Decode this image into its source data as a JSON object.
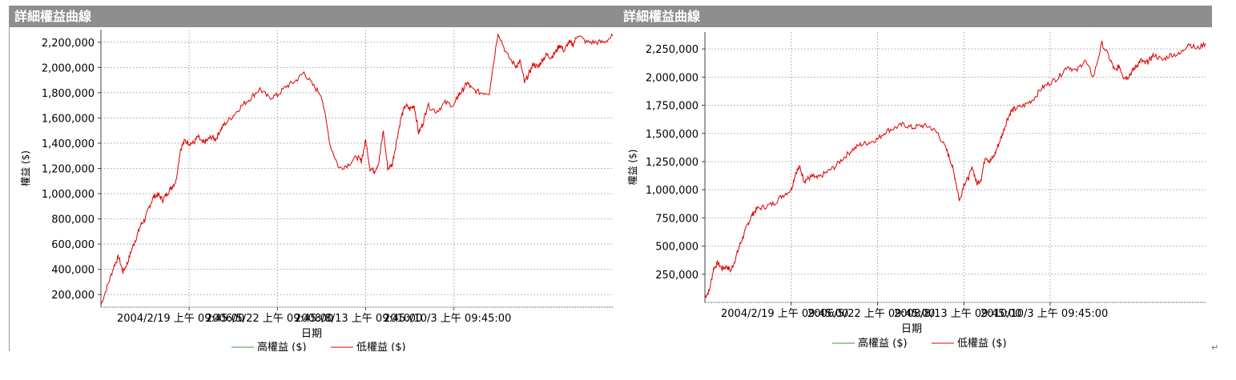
{
  "page_mark": "↵",
  "chart_data": [
    {
      "type": "line",
      "title": "詳細權益曲線",
      "ylabel": "權益 ($)",
      "xlabel": "日期",
      "ylim": [
        100000,
        2300000
      ],
      "y_ticks": [
        "200,000",
        "400,000",
        "600,000",
        "800,000",
        "1,000,000",
        "1,200,000",
        "1,400,000",
        "1,600,000",
        "1,800,000",
        "2,000,000",
        "2,200,000"
      ],
      "y_tick_values": [
        200000,
        400000,
        600000,
        800000,
        1000000,
        1200000,
        1400000,
        1600000,
        1800000,
        2000000,
        2200000
      ],
      "x_labels": [
        "2004/2/19 上午 09:45:00",
        "2006/5/22 上午 09:45:00",
        "2008/8/13 上午 09:45:00",
        "2010/10/3 上午 09:45:00"
      ],
      "x_tick_positions": [
        1,
        2,
        3,
        4
      ],
      "x_range": [
        0,
        5.8
      ],
      "grid": true,
      "legend": [
        "高權益 ($)",
        "低權益 ($)"
      ],
      "legend_colors": [
        "#3a9a3a",
        "#e00000"
      ],
      "series": [
        {
          "name": "低權益 ($)",
          "color": "#e00000",
          "x": [
            0,
            0.08,
            0.15,
            0.2,
            0.25,
            0.3,
            0.35,
            0.4,
            0.45,
            0.5,
            0.55,
            0.6,
            0.65,
            0.7,
            0.75,
            0.8,
            0.85,
            0.9,
            0.95,
            1.0,
            1.05,
            1.1,
            1.15,
            1.2,
            1.25,
            1.3,
            1.35,
            1.4,
            1.5,
            1.6,
            1.7,
            1.8,
            1.9,
            2.0,
            2.1,
            2.2,
            2.3,
            2.4,
            2.5,
            2.6,
            2.7,
            2.8,
            2.9,
            2.95,
            3.0,
            3.05,
            3.1,
            3.15,
            3.2,
            3.25,
            3.3,
            3.35,
            3.4,
            3.45,
            3.5,
            3.55,
            3.6,
            3.65,
            3.7,
            3.8,
            3.9,
            4.0,
            4.05,
            4.1,
            4.15,
            4.2,
            4.3,
            4.4,
            4.5,
            4.6,
            4.7,
            4.75,
            4.8,
            4.85,
            4.9,
            4.95,
            5.0,
            5.05,
            5.1,
            5.15,
            5.2,
            5.25,
            5.3,
            5.35,
            5.4,
            5.5,
            5.6,
            5.7,
            5.8
          ],
          "values": [
            120000,
            280000,
            430000,
            500000,
            380000,
            450000,
            560000,
            650000,
            750000,
            800000,
            900000,
            980000,
            990000,
            950000,
            1000000,
            1050000,
            1100000,
            1350000,
            1420000,
            1400000,
            1400000,
            1450000,
            1400000,
            1420000,
            1450000,
            1430000,
            1500000,
            1550000,
            1620000,
            1700000,
            1760000,
            1830000,
            1760000,
            1780000,
            1850000,
            1890000,
            1960000,
            1860000,
            1780000,
            1380000,
            1200000,
            1230000,
            1290000,
            1260000,
            1420000,
            1200000,
            1180000,
            1250000,
            1500000,
            1200000,
            1230000,
            1420000,
            1600000,
            1700000,
            1670000,
            1700000,
            1480000,
            1560000,
            1700000,
            1650000,
            1720000,
            1700000,
            1780000,
            1820000,
            1880000,
            1830000,
            1800000,
            1800000,
            2280000,
            2100000,
            2010000,
            2050000,
            1880000,
            1950000,
            2030000,
            2000000,
            2060000,
            2100000,
            2080000,
            2120000,
            2180000,
            2130000,
            2200000,
            2180000,
            2260000,
            2200000,
            2200000,
            2200000,
            2250000
          ]
        }
      ]
    },
    {
      "type": "line",
      "title": "詳細權益曲線",
      "ylabel": "權益 ($)",
      "xlabel": "日期",
      "ylim": [
        0,
        2400000
      ],
      "y_ticks": [
        "250,000",
        "500,000",
        "750,000",
        "1,000,000",
        "1,250,000",
        "1,500,000",
        "1,750,000",
        "2,000,000",
        "2,250,000"
      ],
      "y_tick_values": [
        250000,
        500000,
        750000,
        1000000,
        1250000,
        1500000,
        1750000,
        2000000,
        2250000
      ],
      "x_labels": [
        "2004/2/19 上午 09:45:00",
        "2006/5/22 上午 09:45:00",
        "2008/8/13 上午 09:45:00",
        "2010/10/3 上午 09:45:00"
      ],
      "x_tick_positions": [
        1,
        2,
        3,
        4
      ],
      "x_range": [
        0,
        5.8
      ],
      "grid": true,
      "legend": [
        "高權益 ($)",
        "低權益 ($)"
      ],
      "legend_colors": [
        "#3a9a3a",
        "#e00000"
      ],
      "series": [
        {
          "name": "低權益 ($)",
          "color": "#e00000",
          "x": [
            0,
            0.05,
            0.1,
            0.15,
            0.2,
            0.25,
            0.3,
            0.35,
            0.4,
            0.45,
            0.5,
            0.55,
            0.6,
            0.7,
            0.8,
            0.9,
            1.0,
            1.05,
            1.1,
            1.15,
            1.2,
            1.25,
            1.3,
            1.4,
            1.5,
            1.6,
            1.7,
            1.8,
            1.9,
            2.0,
            2.1,
            2.2,
            2.3,
            2.4,
            2.5,
            2.6,
            2.7,
            2.8,
            2.85,
            2.9,
            2.95,
            3.0,
            3.05,
            3.1,
            3.15,
            3.2,
            3.25,
            3.3,
            3.35,
            3.4,
            3.45,
            3.5,
            3.55,
            3.6,
            3.7,
            3.8,
            3.9,
            4.0,
            4.1,
            4.2,
            4.3,
            4.4,
            4.5,
            4.6,
            4.7,
            4.75,
            4.8,
            4.85,
            4.9,
            4.95,
            5.0,
            5.05,
            5.1,
            5.15,
            5.2,
            5.3,
            5.4,
            5.5,
            5.6,
            5.7,
            5.8
          ],
          "values": [
            50000,
            100000,
            300000,
            350000,
            300000,
            320000,
            280000,
            380000,
            500000,
            600000,
            700000,
            780000,
            830000,
            850000,
            880000,
            950000,
            1000000,
            1150000,
            1200000,
            1080000,
            1100000,
            1120000,
            1100000,
            1150000,
            1200000,
            1280000,
            1350000,
            1400000,
            1420000,
            1450000,
            1520000,
            1550000,
            1580000,
            1550000,
            1570000,
            1560000,
            1500000,
            1350000,
            1250000,
            1100000,
            900000,
            1050000,
            1100000,
            1200000,
            1050000,
            1100000,
            1300000,
            1250000,
            1300000,
            1400000,
            1500000,
            1620000,
            1700000,
            1720000,
            1750000,
            1800000,
            1900000,
            1950000,
            2000000,
            2100000,
            2050000,
            2150000,
            2000000,
            2300000,
            2150000,
            2050000,
            2100000,
            2000000,
            2000000,
            2050000,
            2100000,
            2150000,
            2120000,
            2150000,
            2200000,
            2150000,
            2200000,
            2200000,
            2300000,
            2250000,
            2300000
          ]
        }
      ]
    }
  ]
}
